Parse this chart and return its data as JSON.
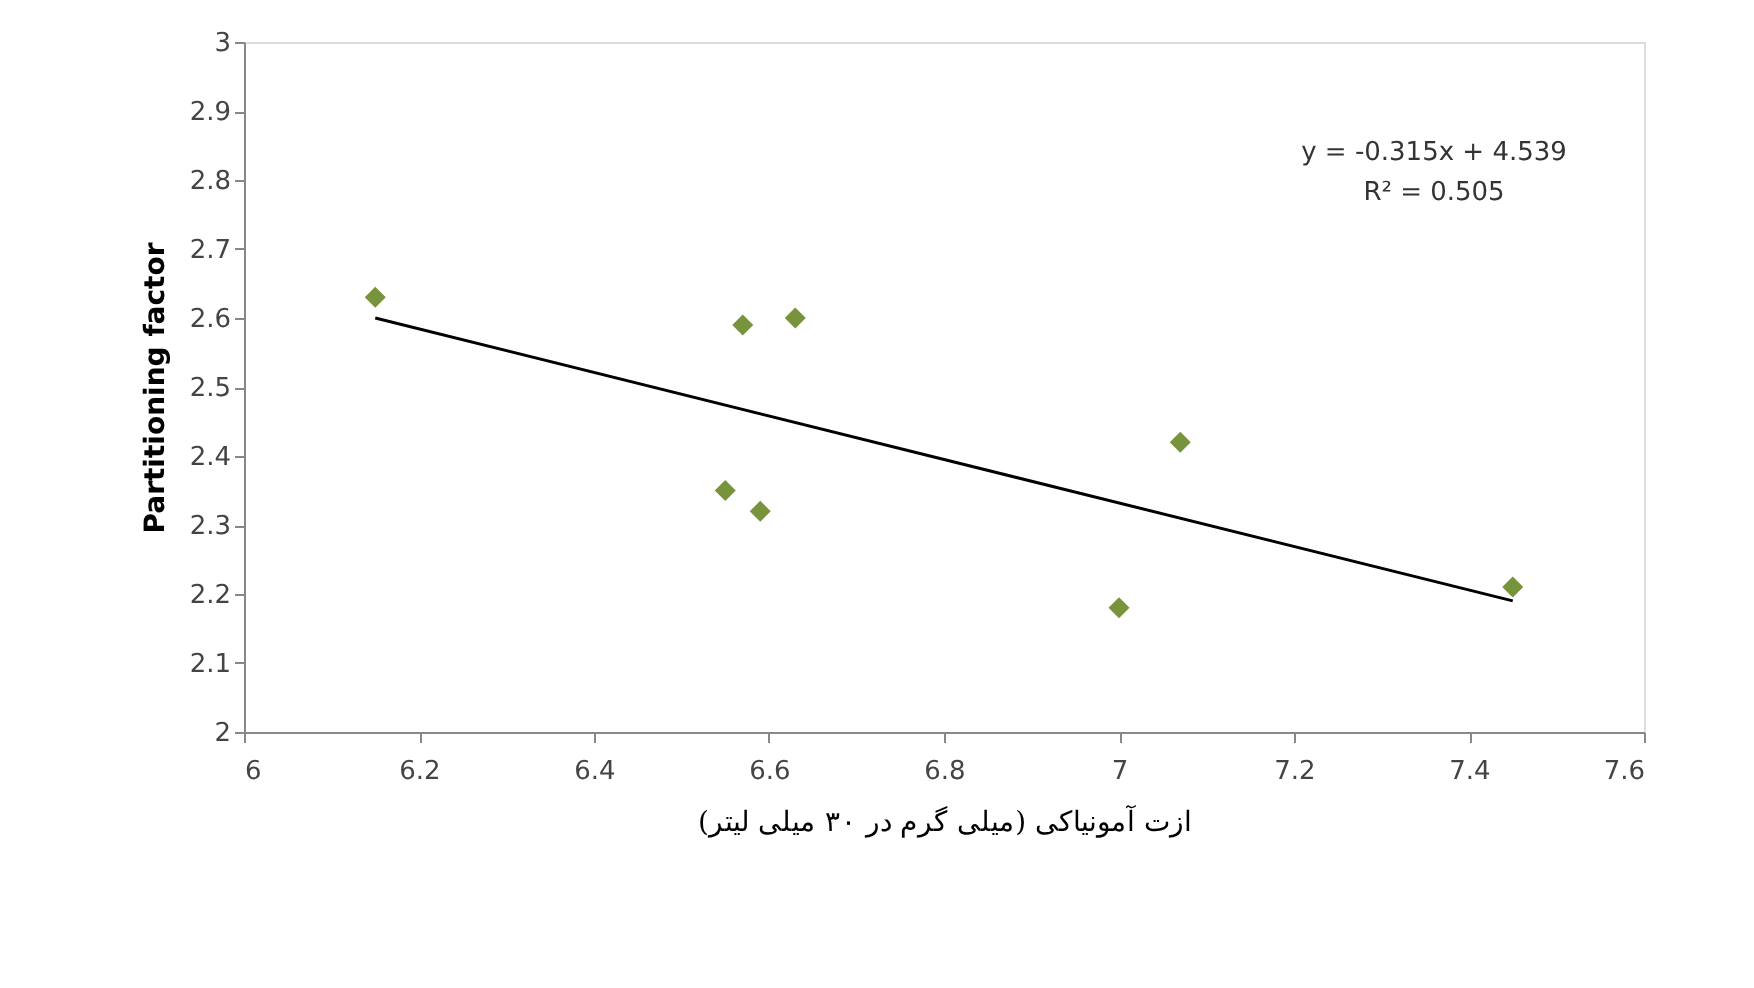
{
  "chart_data": {
    "type": "scatter",
    "xlabel": "ازت آمونیاکی (میلی گرم در ۳۰ میلی لیتر)",
    "ylabel": "Partitioning  factor",
    "series": [
      {
        "color": "#77933c",
        "marker": "diamond",
        "x": [
          6.15,
          6.55,
          6.57,
          6.59,
          6.63,
          7.0,
          7.07,
          7.45
        ],
        "values": [
          2.63,
          2.35,
          2.59,
          2.32,
          2.6,
          2.18,
          2.42,
          2.21
        ]
      },
      {
        "type": "line",
        "color": "#000000",
        "marker": "none",
        "line_style": "solid",
        "x": [
          6.15,
          7.45
        ],
        "values": [
          2.6,
          2.19
        ]
      }
    ],
    "annotations": [
      "y = -0.315x + 4.539",
      "R² = 0.505"
    ],
    "xlim": [
      6,
      7.6
    ],
    "xticks": [
      6,
      6.2,
      6.4,
      6.6,
      6.8,
      7,
      7.2,
      7.4,
      7.6
    ],
    "ylim": [
      2,
      3
    ],
    "yticks": [
      2,
      2.1,
      2.2,
      2.3,
      2.4,
      2.5,
      2.6,
      2.7,
      2.8,
      2.9,
      3
    ],
    "grid": false
  }
}
